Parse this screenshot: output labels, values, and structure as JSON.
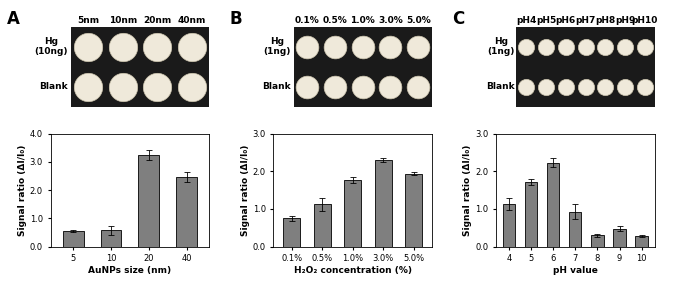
{
  "chart_data": [
    {
      "type": "bar",
      "title": "A",
      "categories": [
        "5",
        "10",
        "20",
        "40"
      ],
      "values": [
        0.55,
        0.57,
        3.25,
        2.47
      ],
      "errors": [
        0.02,
        0.15,
        0.18,
        0.18
      ],
      "color": "#7f7f7f",
      "x_label": "AuNPs size (nm)",
      "y_label": "Signal ratio (ΔI/I₀)",
      "ylim": [
        0,
        4
      ],
      "yticks": [
        {
          "value": 0,
          "label": "0.0"
        },
        {
          "value": 1,
          "label": "1.0"
        },
        {
          "value": 2,
          "label": "2.0"
        },
        {
          "value": 3,
          "label": "3.0"
        },
        {
          "value": 4,
          "label": "4.0"
        }
      ]
    },
    {
      "type": "bar",
      "title": "B",
      "categories": [
        "0.1%",
        "0.5%",
        "1.0%",
        "3.0%",
        "5.0%"
      ],
      "values": [
        0.75,
        1.12,
        1.77,
        2.3,
        1.94
      ],
      "errors": [
        0.07,
        0.17,
        0.08,
        0.06,
        0.05
      ],
      "color": "#7f7f7f",
      "x_label": "H₂O₂ concentration (%)",
      "y_label": "Signal ratio (ΔI/I₀)",
      "ylim": [
        0,
        3
      ],
      "yticks": [
        {
          "value": 0,
          "label": "0.0"
        },
        {
          "value": 1,
          "label": "1.0"
        },
        {
          "value": 2,
          "label": "2.0"
        },
        {
          "value": 3,
          "label": "3.0"
        }
      ]
    },
    {
      "type": "bar",
      "title": "C",
      "categories": [
        "4",
        "5",
        "6",
        "7",
        "8",
        "9",
        "10"
      ],
      "values": [
        1.13,
        1.71,
        2.23,
        0.93,
        0.3,
        0.47,
        0.28
      ],
      "errors": [
        0.17,
        0.08,
        0.12,
        0.2,
        0.04,
        0.07,
        0.03
      ],
      "color": "#7f7f7f",
      "x_label": "pH value",
      "y_label": "Signal ratio (ΔI/I₀)",
      "ylim": [
        0,
        3
      ],
      "yticks": [
        {
          "value": 0,
          "label": "0.0"
        },
        {
          "value": 1,
          "label": "1.0"
        },
        {
          "value": 2,
          "label": "2.0"
        },
        {
          "value": 3,
          "label": "3.0"
        }
      ]
    }
  ],
  "images": [
    {
      "columns": [
        "5nm",
        "10nm",
        "20nm",
        "40nm"
      ],
      "rows": [
        "Hg\n(10ng)",
        "Blank"
      ]
    },
    {
      "columns": [
        "0.1%",
        "0.5%",
        "1.0%",
        "3.0%",
        "5.0%"
      ],
      "rows": [
        "Hg\n(1ng)",
        "Blank"
      ]
    },
    {
      "columns": [
        "pH4",
        "pH5",
        "pH6",
        "pH7",
        "pH8",
        "pH9",
        "pH10"
      ],
      "rows": [
        "Hg\n(1ng)",
        "Blank"
      ]
    }
  ]
}
